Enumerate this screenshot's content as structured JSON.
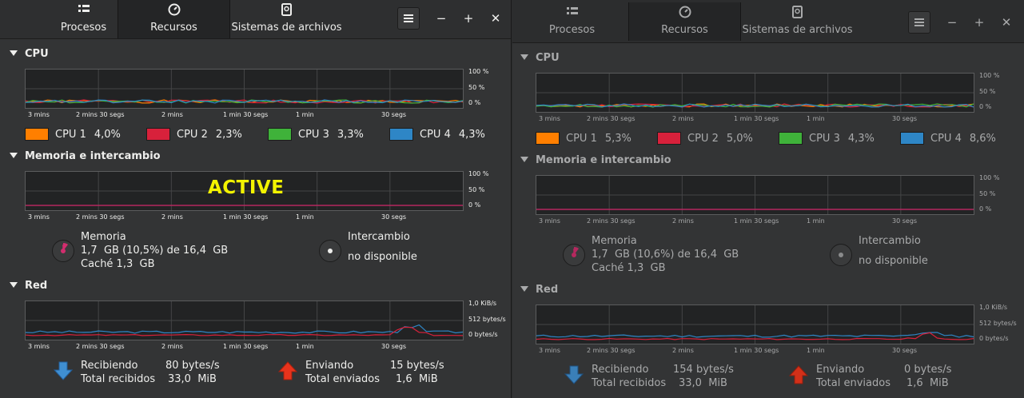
{
  "active_label": "ACTIVE",
  "windows": [
    {
      "tabs": [
        {
          "label": "Procesos"
        },
        {
          "label": "Recursos"
        },
        {
          "label": "Sistemas de archivos"
        }
      ],
      "cpu": {
        "title": "CPU",
        "ticks": [
          "100 %",
          "50 %",
          "0 %"
        ],
        "legend": [
          {
            "label": "CPU 1",
            "value": "4,0%",
            "color": "#ff7f00"
          },
          {
            "label": "CPU 2",
            "value": "2,3%",
            "color": "#d8213b"
          },
          {
            "label": "CPU 3",
            "value": "3,3%",
            "color": "#3fb23a"
          },
          {
            "label": "CPU 4",
            "value": "4,3%",
            "color": "#2e86c6"
          }
        ]
      },
      "mem": {
        "title": "Memoria e intercambio",
        "ticks": [
          "100 %",
          "50 %",
          "0 %"
        ],
        "memory_label": "Memoria",
        "memory_used": "1,7  GB (10,5%) de 16,4  GB",
        "cache": "Caché 1,3  GB",
        "swap_label": "Intercambio",
        "swap_value": "no disponible"
      },
      "net": {
        "title": "Red",
        "ticks": [
          "1,0  KiB/s",
          "512 bytes/s",
          "0 bytes/s"
        ],
        "recv_label": "Recibiendo",
        "recv_value": "80 bytes/s",
        "total_recv_label": "Total recibidos",
        "total_recv_value": "33,0  MiB",
        "send_label": "Enviando",
        "send_value": "15 bytes/s",
        "total_send_label": "Total enviados",
        "total_send_value": "1,6  MiB"
      }
    },
    {
      "tabs": [
        {
          "label": "Procesos"
        },
        {
          "label": "Recursos"
        },
        {
          "label": "Sistemas de archivos"
        }
      ],
      "cpu": {
        "title": "CPU",
        "ticks": [
          "100 %",
          "50 %",
          "0 %"
        ],
        "legend": [
          {
            "label": "CPU 1",
            "value": "5,3%",
            "color": "#ff7f00"
          },
          {
            "label": "CPU 2",
            "value": "5,0%",
            "color": "#d8213b"
          },
          {
            "label": "CPU 3",
            "value": "4,3%",
            "color": "#3fb23a"
          },
          {
            "label": "CPU 4",
            "value": "8,6%",
            "color": "#2e86c6"
          }
        ]
      },
      "mem": {
        "title": "Memoria e intercambio",
        "ticks": [
          "100 %",
          "50 %",
          "0 %"
        ],
        "memory_label": "Memoria",
        "memory_used": "1,7  GB (10,6%) de 16,4  GB",
        "cache": "Caché 1,3  GB",
        "swap_label": "Intercambio",
        "swap_value": "no disponible"
      },
      "net": {
        "title": "Red",
        "ticks": [
          "1,0  KiB/s",
          "512 bytes/s",
          "0 bytes/s"
        ],
        "recv_label": "Recibiendo",
        "recv_value": "154 bytes/s",
        "total_recv_label": "Total recibidos",
        "total_recv_value": "33,0  MiB",
        "send_label": "Enviando",
        "send_value": "0 bytes/s",
        "total_send_label": "Total enviados",
        "total_send_value": "1,6  MiB"
      }
    }
  ],
  "time_ticks": [
    "3 mins",
    "2 mins 30 segs",
    "2 mins",
    "1 min 30 segs",
    "1 min",
    "30 segs"
  ],
  "icons": {
    "procesos": "list-icon",
    "recursos": "gauge-icon",
    "sistemas": "disk-icon",
    "menu": "hamburger-icon",
    "minimize": "minimize-icon",
    "maximize": "maximize-icon",
    "close": "close-icon",
    "memory": "memory-pie-icon",
    "swap": "swap-pie-icon",
    "download": "download-arrow-icon",
    "upload": "upload-arrow-icon"
  }
}
